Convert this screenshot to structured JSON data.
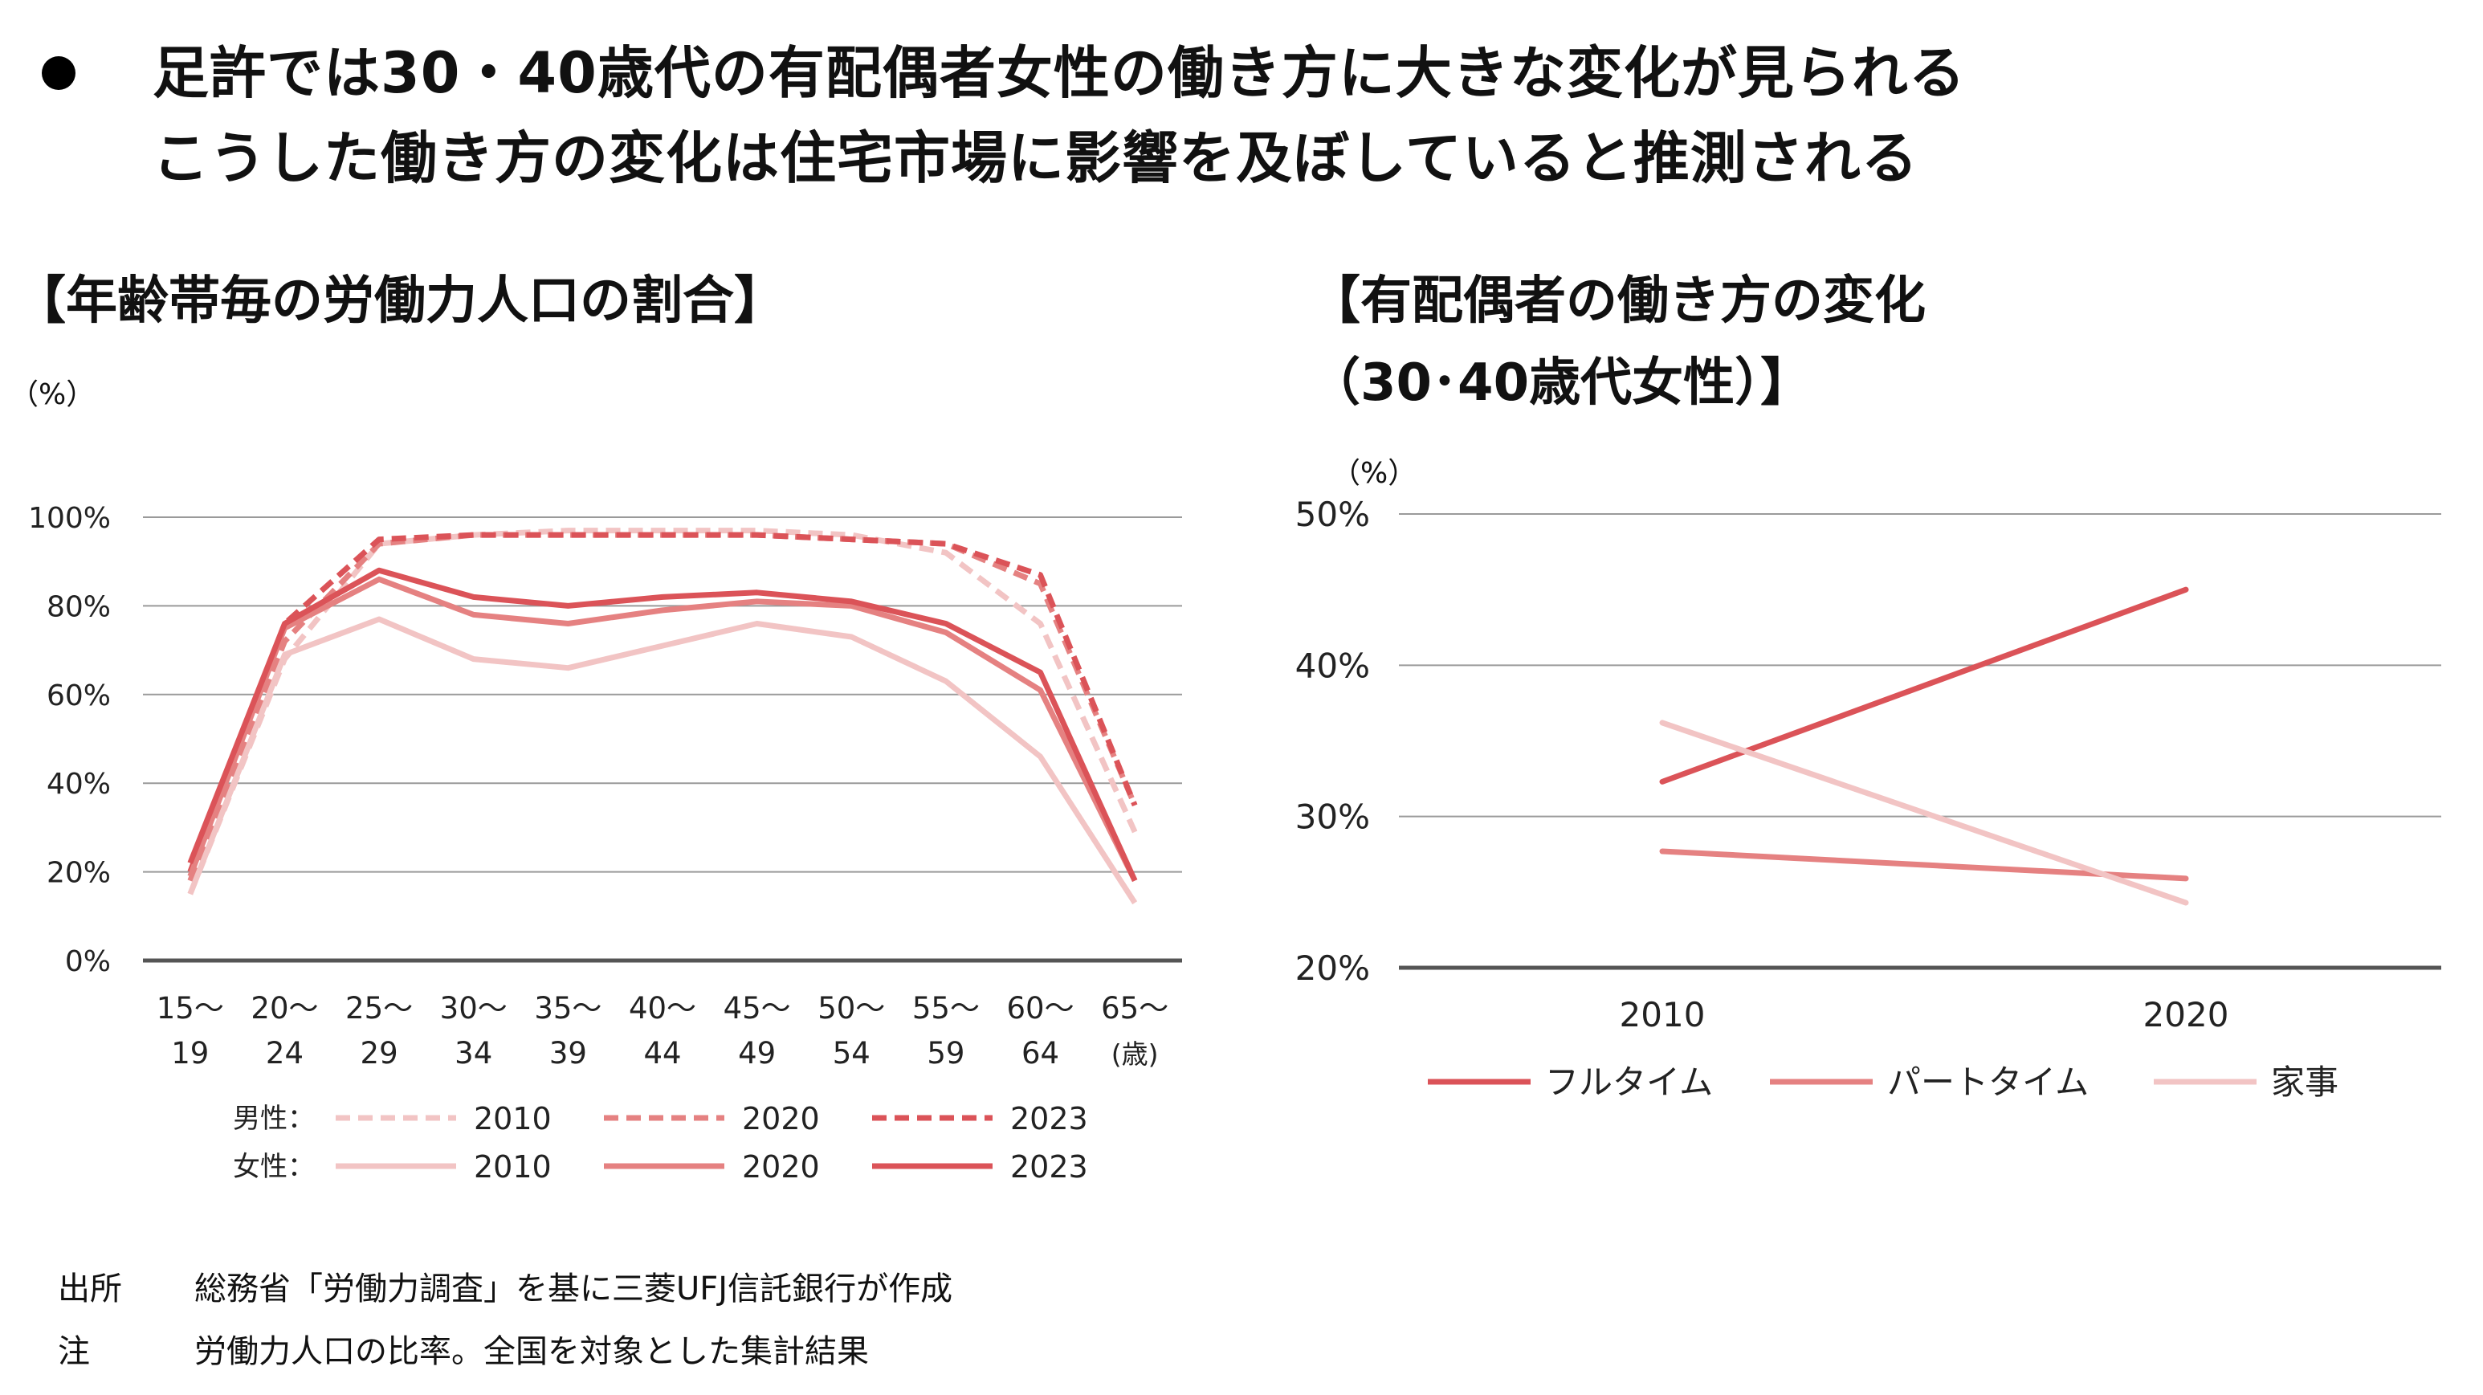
{
  "headline": {
    "line1": "足許では30・40歳代の有配偶者女性の働き方に大きな変化が見られる",
    "line2": "こうした働き方の変化は住宅市場に影響を及ぼしていると推測される"
  },
  "left_chart": {
    "title": "【年齢帯毎の労働力人口の割合】",
    "unit": "（%）",
    "legend_group_male": "男性：",
    "legend_group_female": "女性：",
    "x_suffix": "(歳)"
  },
  "right_chart": {
    "title_line1": "【有配偶者の働き方の変化",
    "title_line2": "（30･40歳代女性）】",
    "unit": "（%）"
  },
  "footer": {
    "source_label": "出所",
    "source_text": "総務省「労働力調査」を基に三菱UFJ信託銀行が作成",
    "note_label": "注",
    "note_text": "労働力人口の比率。全国を対象とした集計結果"
  },
  "chart_data": [
    {
      "type": "line",
      "title": "【年齢帯毎の労働力人口の割合】",
      "ylabel": "（%）",
      "ylim": [
        0,
        100
      ],
      "yticks": [
        "0%",
        "20%",
        "40%",
        "60%",
        "80%",
        "100%"
      ],
      "grid": true,
      "legend_position": "bottom",
      "categories": [
        [
          "15～",
          "19"
        ],
        [
          "20～",
          "24"
        ],
        [
          "25～",
          "29"
        ],
        [
          "30～",
          "34"
        ],
        [
          "35～",
          "39"
        ],
        [
          "40～",
          "44"
        ],
        [
          "45～",
          "49"
        ],
        [
          "50～",
          "54"
        ],
        [
          "55～",
          "59"
        ],
        [
          "60～",
          "64"
        ],
        [
          "65～",
          "(歳)"
        ]
      ],
      "series": [
        {
          "name": "2010",
          "group": "男性",
          "dashed": true,
          "color": "#f2c4c4",
          "values": [
            15,
            68,
            94,
            96,
            97,
            97,
            97,
            96,
            92,
            76,
            29
          ]
        },
        {
          "name": "2020",
          "group": "男性",
          "dashed": true,
          "color": "#e58181",
          "values": [
            18,
            72,
            94,
            96,
            96,
            96,
            96,
            95,
            94,
            85,
            35
          ]
        },
        {
          "name": "2023",
          "group": "男性",
          "dashed": true,
          "color": "#db5358",
          "values": [
            20,
            76,
            95,
            96,
            96,
            96,
            96,
            95,
            94,
            87,
            35
          ]
        },
        {
          "name": "2010",
          "group": "女性",
          "dashed": false,
          "color": "#f2c4c4",
          "values": [
            15,
            69,
            77,
            68,
            66,
            71,
            76,
            73,
            63,
            46,
            13
          ]
        },
        {
          "name": "2020",
          "group": "女性",
          "dashed": false,
          "color": "#e58181",
          "values": [
            19,
            75,
            86,
            78,
            76,
            79,
            81,
            80,
            74,
            61,
            18
          ]
        },
        {
          "name": "2023",
          "group": "女性",
          "dashed": false,
          "color": "#db5358",
          "values": [
            22,
            76,
            88,
            82,
            80,
            82,
            83,
            81,
            76,
            65,
            18
          ]
        }
      ]
    },
    {
      "type": "line",
      "title": "【有配偶者の働き方の変化（30･40歳代女性）】",
      "ylabel": "（%）",
      "ylim": [
        20,
        50
      ],
      "yticks": [
        "20%",
        "30%",
        "40%",
        "50%"
      ],
      "grid": true,
      "legend_position": "bottom",
      "categories": [
        "2010",
        "2020"
      ],
      "series": [
        {
          "name": "フルタイム",
          "color": "#db5358",
          "values": [
            32.3,
            45.0
          ]
        },
        {
          "name": "パートタイム",
          "color": "#e58181",
          "values": [
            27.7,
            25.9
          ]
        },
        {
          "name": "家事",
          "color": "#f2c4c4",
          "values": [
            36.2,
            24.3
          ]
        }
      ]
    }
  ]
}
